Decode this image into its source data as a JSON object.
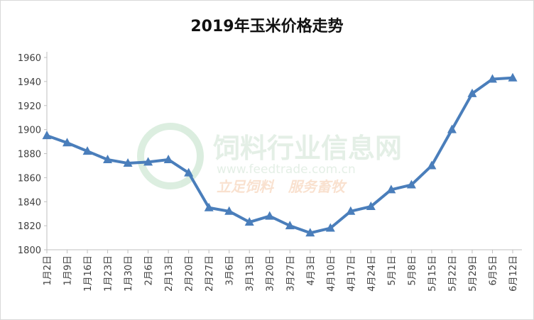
{
  "chart_data": {
    "type": "line",
    "title": "2019年玉米价格走势",
    "categories": [
      "1月2日",
      "1月9日",
      "1月16日",
      "1月23日",
      "1月30日",
      "2月6日",
      "2月13日",
      "2月20日",
      "2月27日",
      "3月6日",
      "3月13日",
      "3月20日",
      "3月27日",
      "4月3日",
      "4月10日",
      "4月17日",
      "4月24日",
      "5月1日",
      "5月8日",
      "5月15日",
      "5月22日",
      "5月29日",
      "6月5日",
      "6月12日"
    ],
    "series": [
      {
        "name": "玉米价格",
        "color": "#4a7ebb",
        "values": [
          1895,
          1889,
          1882,
          1875,
          1872,
          1873,
          1875,
          1864,
          1835,
          1832,
          1823,
          1828,
          1820,
          1814,
          1818,
          1832,
          1836,
          1850,
          1854,
          1870,
          1900,
          1930,
          1942,
          1943
        ]
      }
    ],
    "ylim": [
      1800,
      1960
    ],
    "yticks": [
      1800,
      1820,
      1840,
      1860,
      1880,
      1900,
      1920,
      1940,
      1960
    ],
    "grid": false,
    "watermark": {
      "name": "饲料行业信息网",
      "url": "www.feedtrade.com.cn",
      "slogan": "立足饲料   服务畜牧"
    }
  }
}
